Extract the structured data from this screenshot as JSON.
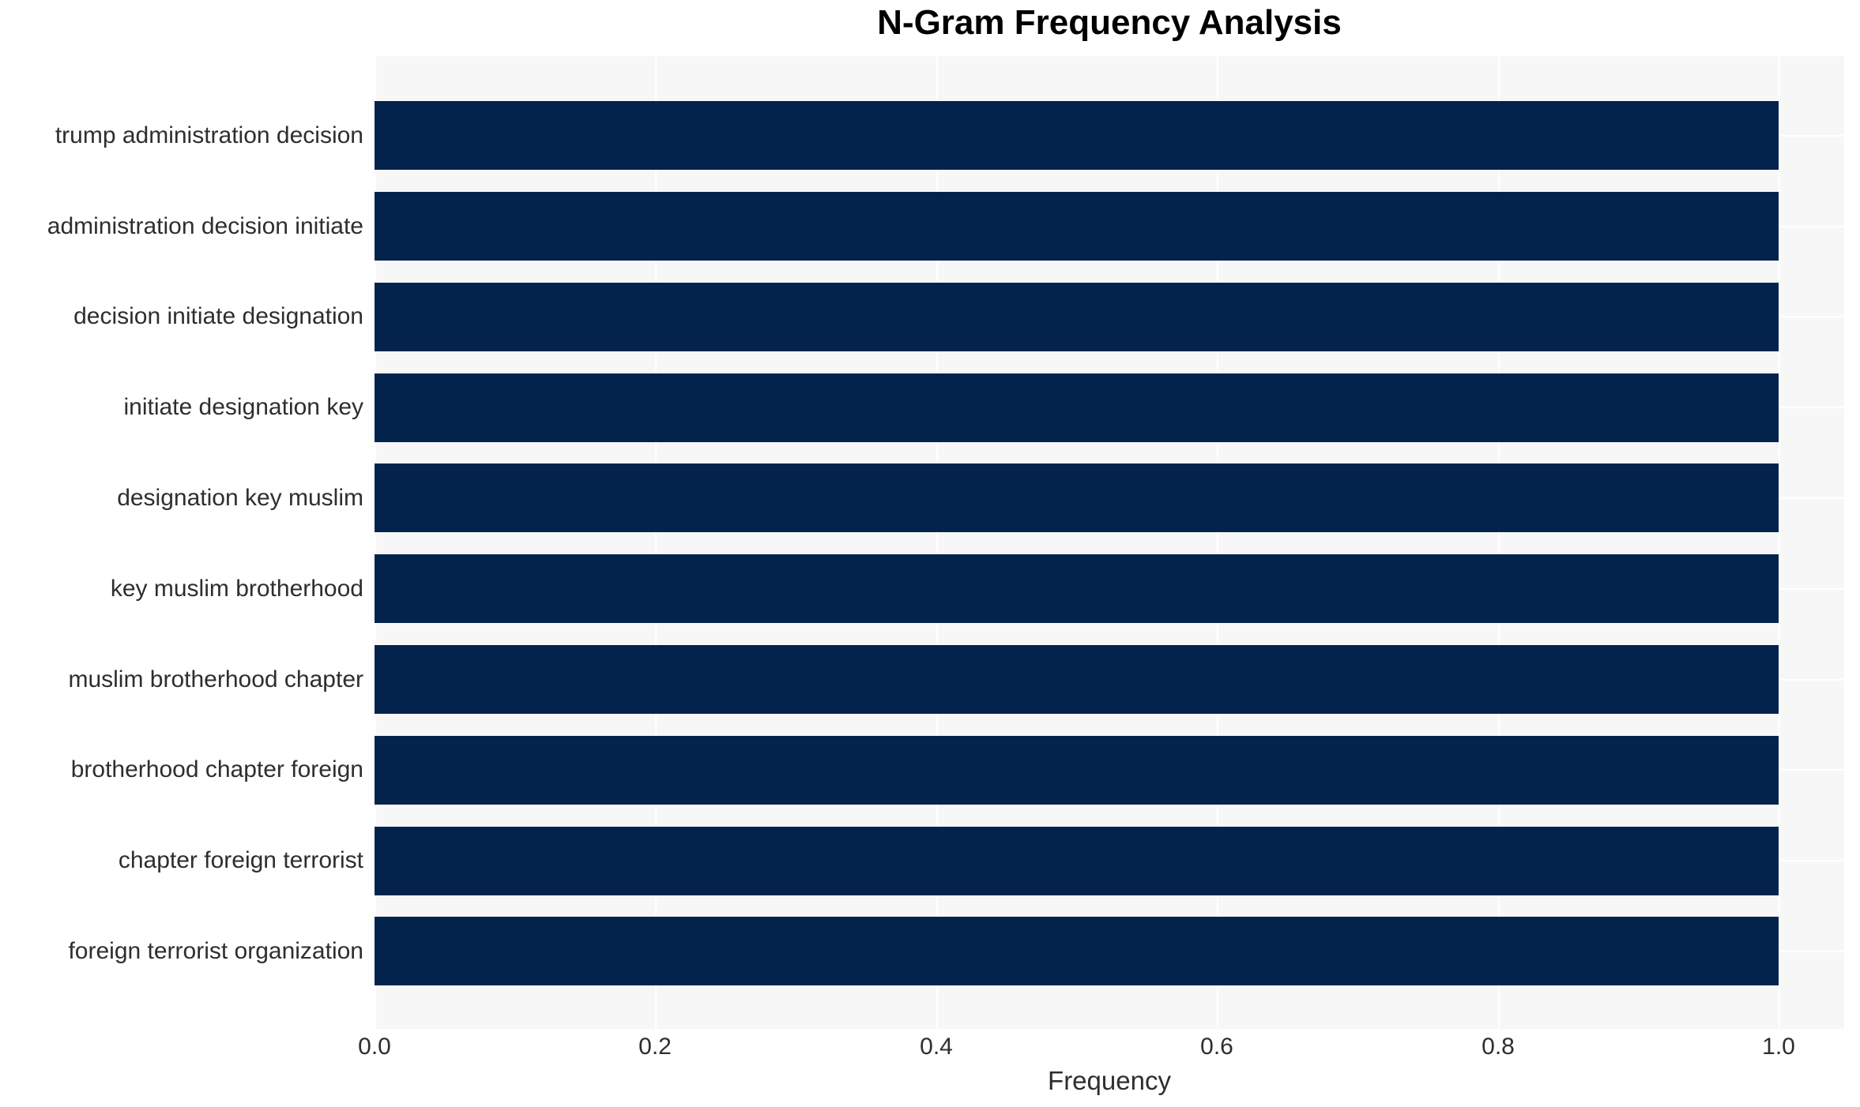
{
  "chart_data": {
    "type": "bar",
    "orientation": "horizontal",
    "title": "N-Gram Frequency Analysis",
    "xlabel": "Frequency",
    "ylabel": "",
    "categories": [
      "trump administration decision",
      "administration decision initiate",
      "decision initiate designation",
      "initiate designation key",
      "designation key muslim",
      "key muslim brotherhood",
      "muslim brotherhood chapter",
      "brotherhood chapter foreign",
      "chapter foreign terrorist",
      "foreign terrorist organization"
    ],
    "values": [
      1.0,
      1.0,
      1.0,
      1.0,
      1.0,
      1.0,
      1.0,
      1.0,
      1.0,
      1.0
    ],
    "xtick_values": [
      0.0,
      0.2,
      0.4,
      0.6,
      0.8,
      1.0
    ],
    "xtick_labels": [
      "0.0",
      "0.2",
      "0.4",
      "0.6",
      "0.8",
      "1.0"
    ],
    "xlim": [
      0,
      1.047
    ],
    "grid": true,
    "legend": false,
    "colors": {
      "bar": "#03234d",
      "plot_background": "#f7f7f8",
      "gridline": "#ffffff",
      "axis_text": "#2e2e2e",
      "title_text": "#000000",
      "page_background": "#ffffff"
    }
  }
}
